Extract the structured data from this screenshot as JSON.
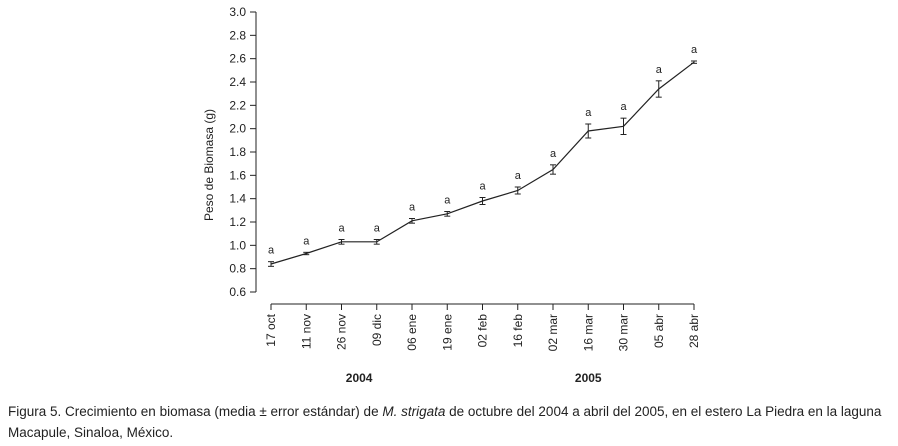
{
  "chart_data": {
    "type": "line",
    "title": "",
    "xlabel": "",
    "ylabel": "Peso de Biomasa (g)",
    "ylim": [
      0.6,
      3.0
    ],
    "yticks": [
      "0.6",
      "0.8",
      "1.0",
      "1.2",
      "1.4",
      "1.6",
      "1.8",
      "2.0",
      "2.2",
      "2.4",
      "2.6",
      "2.8",
      "3.0"
    ],
    "categories": [
      "17 oct",
      "11 nov",
      "26 nov",
      "09 dic",
      "06 ene",
      "19 ene",
      "02 feb",
      "16 feb",
      "02 mar",
      "16 mar",
      "30 mar",
      "05 abr",
      "28 abr"
    ],
    "values": [
      0.84,
      0.93,
      1.03,
      1.03,
      1.21,
      1.27,
      1.38,
      1.47,
      1.65,
      1.98,
      2.02,
      2.34,
      2.57
    ],
    "errors": [
      0.02,
      0.01,
      0.02,
      0.02,
      0.02,
      0.02,
      0.03,
      0.03,
      0.04,
      0.06,
      0.07,
      0.07,
      0.01
    ],
    "significance": [
      "a",
      "a",
      "a",
      "a",
      "a",
      "a",
      "a",
      "a",
      "a",
      "a",
      "a",
      "a",
      "a"
    ],
    "year_groups": [
      {
        "label": "2004",
        "from": 0,
        "to": 5
      },
      {
        "label": "2005",
        "from": 6,
        "to": 12
      }
    ],
    "grid": false,
    "legend": "none"
  },
  "caption": {
    "prefix": "Figura 5. Crecimiento en biomasa (media ± error estándar) de ",
    "species": "M. strigata",
    "suffix": " de octubre del 2004 a abril del 2005, en el estero La Piedra en la laguna Macapule, Sinaloa, México."
  }
}
